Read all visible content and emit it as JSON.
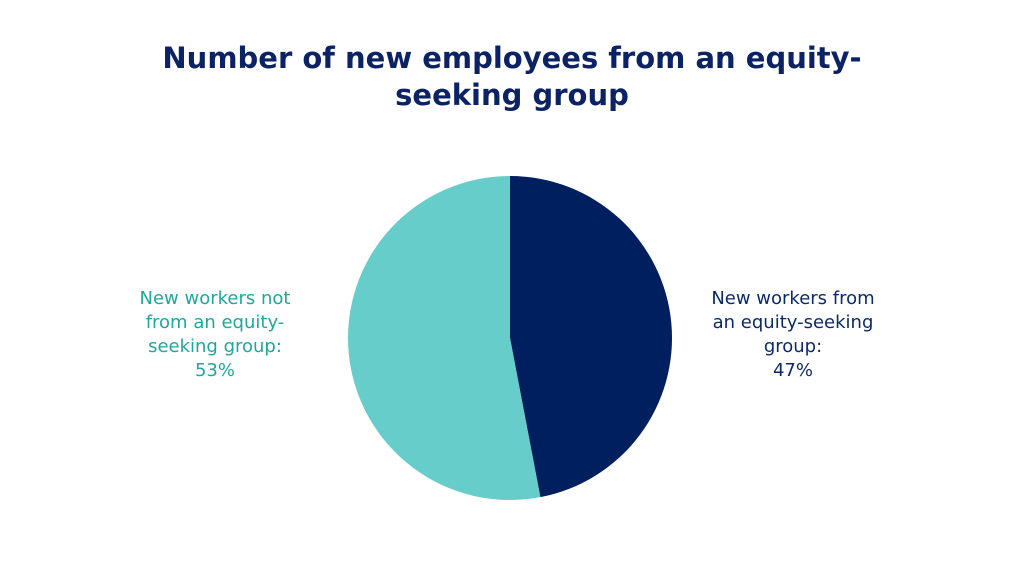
{
  "chart_data": {
    "type": "pie",
    "title": "Number of new employees from an equity-seeking group",
    "categories": [
      "New workers from an equity-seeking group:",
      "New workers not from an equity-seeking group:"
    ],
    "values": [
      47,
      53
    ],
    "value_labels": [
      "47%",
      "53%"
    ],
    "colors": [
      "#001f5f",
      "#66cdca"
    ],
    "label_colors": [
      "#0b2a6b",
      "#1fa79c"
    ]
  }
}
